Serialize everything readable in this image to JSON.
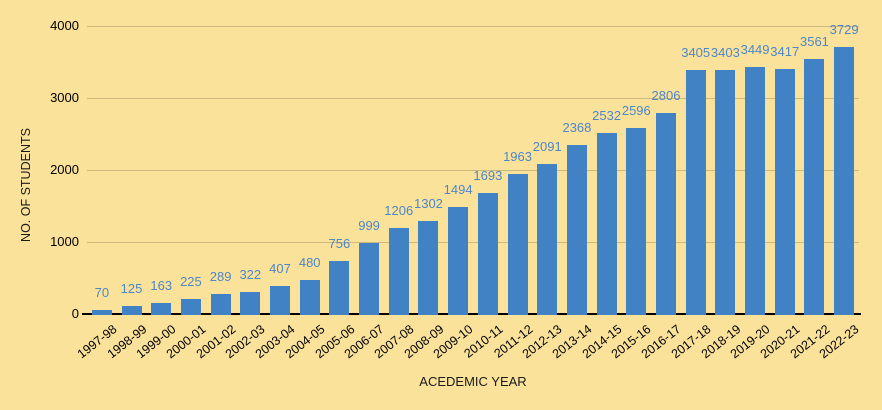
{
  "chart_data": {
    "type": "bar",
    "title": "",
    "xlabel": "ACEDEMIC YEAR",
    "ylabel": "NO. OF STUDENTS",
    "categories": [
      "1997-98",
      "1998-99",
      "1999-00",
      "2000-01",
      "2001-02",
      "2002-03",
      "2003-04",
      "2004-05",
      "2005-06",
      "2006-07",
      "2007-08",
      "2008-09",
      "2009-10",
      "2010-11",
      "2011-12",
      "2012-13",
      "2013-14",
      "2014-15",
      "2015-16",
      "2016-17",
      "2017-18",
      "2018-19",
      "2019-20",
      "2020-21",
      "2021-22",
      "2022-23"
    ],
    "values": [
      70,
      125,
      163,
      225,
      289,
      322,
      407,
      480,
      756,
      999,
      1206,
      1302,
      1494,
      1693,
      1963,
      2091,
      2368,
      2532,
      2596,
      2806,
      3405,
      3403,
      3449,
      3417,
      3561,
      3729
    ],
    "data_labels_shown": true,
    "ylim": [
      0,
      4000
    ],
    "yticks": [
      0,
      1000,
      2000,
      3000,
      4000
    ],
    "grid": true,
    "legend": "none",
    "colors": {
      "background": "#FBE29A",
      "bar": "#4182C4",
      "data_label": "#4E86C6",
      "axis_text": "#000000",
      "gridline": "rgba(0,0,0,0.18)",
      "baseline": "#000000"
    }
  }
}
